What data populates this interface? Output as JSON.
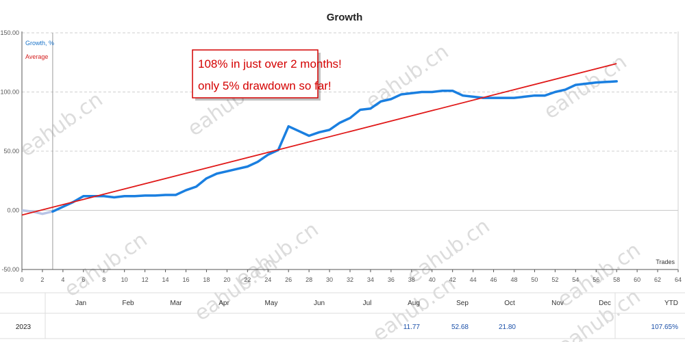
{
  "chart_data": {
    "type": "line",
    "title": "Growth",
    "xlabel": "Trades",
    "ylabel": "",
    "xlim": [
      0,
      64
    ],
    "ylim": [
      -50,
      150
    ],
    "x_ticks": [
      0,
      2,
      4,
      6,
      8,
      10,
      12,
      14,
      16,
      18,
      20,
      22,
      24,
      26,
      28,
      30,
      32,
      34,
      36,
      38,
      40,
      42,
      44,
      46,
      48,
      50,
      52,
      54,
      56,
      58,
      60,
      62,
      64
    ],
    "y_ticks": [
      "150.00",
      "100.00",
      "50.00",
      "0.00",
      "-50.00"
    ],
    "grid": true,
    "legend": {
      "placement": "top-left",
      "entries": [
        "Growth, %",
        "Average"
      ]
    },
    "pre_start_series": {
      "x": [
        0,
        1,
        2,
        3
      ],
      "y": [
        0,
        -1,
        -3,
        -1
      ]
    },
    "series": [
      {
        "name": "Growth, %",
        "color": "#1a7fe0",
        "x": [
          3,
          4,
          5,
          6,
          7,
          8,
          9,
          10,
          11,
          12,
          13,
          14,
          15,
          16,
          17,
          18,
          19,
          20,
          21,
          22,
          23,
          24,
          25,
          26,
          27,
          28,
          29,
          30,
          31,
          32,
          33,
          34,
          35,
          36,
          37,
          38,
          39,
          40,
          41,
          42,
          43,
          44,
          45,
          46,
          47,
          48,
          49,
          50,
          51,
          52,
          53,
          54,
          55,
          56,
          57,
          58
        ],
        "y": [
          -1,
          3,
          7,
          12,
          12,
          12,
          11,
          12,
          12,
          12.5,
          12.5,
          13,
          13,
          17,
          20,
          27,
          31,
          33,
          35,
          37,
          41,
          47,
          51,
          71,
          67,
          63,
          66,
          68,
          74,
          78,
          85,
          86,
          92,
          94,
          98,
          99,
          100,
          100,
          101,
          101,
          97,
          96,
          95,
          95,
          95,
          95,
          96,
          97,
          97,
          100,
          102,
          106,
          107,
          108,
          108.5,
          109
        ]
      },
      {
        "name": "Average",
        "color": "#e01818",
        "x": [
          0,
          58
        ],
        "y": [
          -4,
          124
        ]
      }
    ],
    "start_marker_x": 3,
    "annotation": {
      "lines": [
        "108% in just over 2 months!",
        "only 5% drawdown so far!"
      ]
    }
  },
  "watermark": "eahub.cn",
  "monthly_table": {
    "months": [
      "Jan",
      "Feb",
      "Mar",
      "Apr",
      "May",
      "Jun",
      "Jul",
      "Aug",
      "Sep",
      "Oct",
      "Nov",
      "Dec"
    ],
    "total_label": "YTD",
    "rows": [
      {
        "year": "2023",
        "values": [
          "",
          "",
          "",
          "",
          "",
          "",
          "",
          "11.77",
          "52.68",
          "21.80",
          "",
          ""
        ],
        "ytd": "107.65%"
      }
    ]
  }
}
